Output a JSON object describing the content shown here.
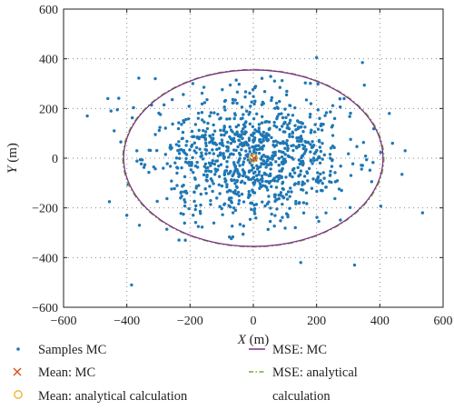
{
  "chart_data": {
    "type": "scatter",
    "title": "",
    "xlabel_var": "X",
    "xlabel_unit": "(m)",
    "ylabel_var": "Y",
    "ylabel_unit": "(m)",
    "xlim": [
      -600,
      600
    ],
    "ylim": [
      -600,
      600
    ],
    "xticks": [
      -600,
      -400,
      -200,
      0,
      200,
      400,
      600
    ],
    "yticks": [
      -600,
      -400,
      -200,
      0,
      200,
      400,
      600
    ],
    "xtick_labels": [
      "−600",
      "−400",
      "−200",
      "0",
      "200",
      "400",
      "600"
    ],
    "ytick_labels": [
      "−600",
      "−400",
      "−200",
      "0",
      "200",
      "400",
      "600"
    ],
    "grid": "dotted",
    "legend_position": "below",
    "colors": {
      "samples": "#1f77b4",
      "mean_mc": "#d95319",
      "mean_analytical": "#edb120",
      "mse_mc": "#7e2f8e",
      "mse_analytical": "#77ac30"
    },
    "series": [
      {
        "name": "Samples MC",
        "kind": "scatter",
        "n_points": 1000,
        "sigma_x": 150,
        "sigma_y": 127,
        "seed": 7,
        "outliers": [
          [
            -525,
            170
          ],
          [
            -460,
            240
          ],
          [
            -455,
            -175
          ],
          [
            -450,
            190
          ],
          [
            -430,
            195
          ],
          [
            -400,
            -230
          ],
          [
            -385,
            -510
          ],
          [
            -360,
            -270
          ],
          [
            -440,
            110
          ],
          [
            470,
            -65
          ],
          [
            480,
            30
          ],
          [
            535,
            -220
          ],
          [
            440,
            60
          ],
          [
            345,
            385
          ],
          [
            320,
            -430
          ],
          [
            150,
            -420
          ],
          [
            -215,
            -330
          ],
          [
            200,
            405
          ],
          [
            -310,
            320
          ],
          [
            430,
            180
          ]
        ]
      },
      {
        "name": "Mean: MC",
        "kind": "marker-x",
        "x": 2,
        "y": 0
      },
      {
        "name": "Mean: analytical calculation",
        "kind": "marker-o",
        "x": 0,
        "y": 0
      },
      {
        "name": "MSE: MC",
        "kind": "ellipse",
        "cx": 0,
        "cy": 0,
        "rx": 410,
        "ry": 355
      },
      {
        "name": "MSE: analytical calculation",
        "kind": "ellipse",
        "cx": 0,
        "cy": 0,
        "rx": 413,
        "ry": 357
      }
    ],
    "legend": [
      {
        "key": "samples",
        "lines": [
          "Samples MC"
        ]
      },
      {
        "key": "mse_mc",
        "lines": [
          "MSE: MC"
        ]
      },
      {
        "key": "mean_mc",
        "lines": [
          "Mean: MC"
        ]
      },
      {
        "key": "mse_an",
        "lines": [
          "MSE: analytical",
          "calculation"
        ]
      },
      {
        "key": "mean_an",
        "lines": [
          "Mean: analytical calculation"
        ]
      }
    ]
  }
}
